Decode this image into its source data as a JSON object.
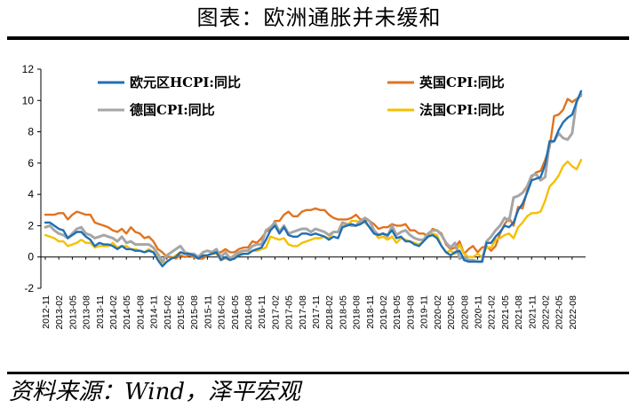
{
  "header": {
    "title": "图表：欧洲通胀并未缓和"
  },
  "footer": {
    "source": "资料来源：Wind，泽平宏观"
  },
  "chart_data": {
    "type": "line",
    "title": "",
    "xlabel": "",
    "ylabel": "",
    "ylim": [
      -2,
      12
    ],
    "yticks": [
      -2,
      0,
      2,
      4,
      6,
      8,
      10,
      12
    ],
    "grid": false,
    "legend_position": "top",
    "x": [
      "2012-11",
      "2012-12",
      "2013-01",
      "2013-02",
      "2013-03",
      "2013-04",
      "2013-05",
      "2013-06",
      "2013-07",
      "2013-08",
      "2013-09",
      "2013-10",
      "2013-11",
      "2013-12",
      "2014-01",
      "2014-02",
      "2014-03",
      "2014-04",
      "2014-05",
      "2014-06",
      "2014-07",
      "2014-08",
      "2014-09",
      "2014-10",
      "2014-11",
      "2014-12",
      "2015-01",
      "2015-02",
      "2015-03",
      "2015-04",
      "2015-05",
      "2015-06",
      "2015-07",
      "2015-08",
      "2015-09",
      "2015-10",
      "2015-11",
      "2015-12",
      "2016-01",
      "2016-02",
      "2016-03",
      "2016-04",
      "2016-05",
      "2016-06",
      "2016-07",
      "2016-08",
      "2016-09",
      "2016-10",
      "2016-11",
      "2016-12",
      "2017-01",
      "2017-02",
      "2017-03",
      "2017-04",
      "2017-05",
      "2017-06",
      "2017-07",
      "2017-08",
      "2017-09",
      "2017-10",
      "2017-11",
      "2017-12",
      "2018-01",
      "2018-02",
      "2018-03",
      "2018-04",
      "2018-05",
      "2018-06",
      "2018-07",
      "2018-08",
      "2018-09",
      "2018-10",
      "2018-11",
      "2018-12",
      "2019-01",
      "2019-02",
      "2019-03",
      "2019-04",
      "2019-05",
      "2019-06",
      "2019-07",
      "2019-08",
      "2019-09",
      "2019-10",
      "2019-11",
      "2019-12",
      "2020-01",
      "2020-02",
      "2020-03",
      "2020-04",
      "2020-05",
      "2020-06",
      "2020-07",
      "2020-08",
      "2020-09",
      "2020-10",
      "2020-11",
      "2020-12",
      "2021-01",
      "2021-02",
      "2021-03",
      "2021-04",
      "2021-05",
      "2021-06",
      "2021-07",
      "2021-08",
      "2021-09",
      "2021-10",
      "2021-11",
      "2021-12",
      "2022-01",
      "2022-02",
      "2022-03",
      "2022-04",
      "2022-05",
      "2022-06",
      "2022-07",
      "2022-08",
      "2022-09",
      "2022-10"
    ],
    "x_tick_labels": [
      "2012-11",
      "2013-02",
      "2013-05",
      "2013-08",
      "2013-11",
      "2014-02",
      "2014-05",
      "2014-08",
      "2014-11",
      "2015-02",
      "2015-05",
      "2015-08",
      "2015-11",
      "2016-02",
      "2016-05",
      "2016-08",
      "2016-11",
      "2017-02",
      "2017-05",
      "2017-08",
      "2017-11",
      "2018-02",
      "2018-05",
      "2018-08",
      "2018-11",
      "2019-02",
      "2019-05",
      "2019-08",
      "2019-11",
      "2020-02",
      "2020-05",
      "2020-08",
      "2020-11",
      "2021-02",
      "2021-05",
      "2021-08",
      "2021-11",
      "2022-02",
      "2022-05",
      "2022-08"
    ],
    "series": [
      {
        "name": "欧元区HCPI:同比",
        "color": "#1f6fb4",
        "width": 2.4,
        "values": [
          2.2,
          2.2,
          2.0,
          1.8,
          1.7,
          1.2,
          1.4,
          1.6,
          1.6,
          1.3,
          1.1,
          0.7,
          0.9,
          0.8,
          0.8,
          0.7,
          0.5,
          0.7,
          0.5,
          0.5,
          0.4,
          0.4,
          0.3,
          0.4,
          0.3,
          -0.2,
          -0.6,
          -0.3,
          -0.1,
          0.0,
          0.3,
          0.2,
          0.2,
          0.1,
          -0.1,
          0.1,
          0.1,
          0.2,
          0.3,
          -0.2,
          0.0,
          -0.2,
          -0.1,
          0.1,
          0.2,
          0.2,
          0.4,
          0.5,
          0.6,
          1.1,
          1.7,
          2.0,
          1.5,
          1.9,
          1.4,
          1.3,
          1.3,
          1.5,
          1.5,
          1.4,
          1.5,
          1.4,
          1.3,
          1.1,
          1.3,
          1.2,
          1.9,
          2.0,
          2.1,
          2.0,
          2.1,
          2.3,
          1.9,
          1.5,
          1.4,
          1.5,
          1.4,
          1.7,
          1.2,
          1.3,
          1.0,
          1.0,
          0.8,
          0.7,
          1.0,
          1.3,
          1.4,
          1.2,
          0.7,
          0.3,
          0.1,
          0.3,
          0.4,
          -0.2,
          -0.3,
          -0.3,
          -0.3,
          -0.3,
          0.9,
          0.9,
          1.3,
          1.6,
          2.0,
          1.9,
          2.2,
          3.0,
          3.4,
          4.1,
          4.9,
          5.0,
          5.1,
          5.9,
          7.4,
          7.4,
          8.1,
          8.6,
          8.9,
          9.1,
          9.9,
          10.6
        ]
      },
      {
        "name": "英国CPI:同比",
        "color": "#e0731f",
        "width": 2.4,
        "values": [
          2.7,
          2.7,
          2.7,
          2.8,
          2.8,
          2.4,
          2.7,
          2.9,
          2.8,
          2.7,
          2.7,
          2.2,
          2.1,
          2.0,
          1.9,
          1.7,
          1.6,
          1.8,
          1.5,
          1.9,
          1.6,
          1.5,
          1.2,
          1.3,
          1.0,
          0.5,
          0.3,
          0.0,
          0.0,
          -0.1,
          0.1,
          0.0,
          0.1,
          0.0,
          -0.1,
          -0.1,
          0.1,
          0.2,
          0.3,
          0.3,
          0.5,
          0.3,
          0.3,
          0.5,
          0.6,
          0.6,
          1.0,
          0.9,
          1.2,
          1.6,
          1.8,
          2.3,
          2.3,
          2.7,
          2.9,
          2.6,
          2.6,
          2.9,
          3.0,
          3.0,
          3.1,
          3.0,
          3.0,
          2.7,
          2.5,
          2.4,
          2.4,
          2.4,
          2.5,
          2.7,
          2.4,
          2.4,
          2.3,
          2.1,
          1.8,
          1.9,
          1.9,
          2.1,
          2.0,
          2.0,
          2.1,
          1.7,
          1.7,
          1.5,
          1.5,
          1.3,
          1.8,
          1.7,
          1.5,
          0.8,
          0.5,
          0.6,
          1.0,
          0.2,
          0.5,
          0.7,
          0.3,
          0.6,
          0.7,
          0.4,
          0.7,
          1.5,
          2.1,
          2.5,
          2.0,
          3.2,
          3.1,
          4.2,
          5.1,
          5.4,
          5.5,
          6.2,
          7.0,
          9.0,
          9.1,
          9.4,
          10.1,
          9.9,
          10.1,
          10.3
        ]
      },
      {
        "name": "德国CPI:同比",
        "color": "#a6a6a6",
        "width": 3.0,
        "values": [
          1.9,
          2.0,
          1.7,
          1.5,
          1.4,
          1.2,
          1.5,
          1.8,
          1.9,
          1.5,
          1.4,
          1.2,
          1.3,
          1.4,
          1.3,
          1.2,
          1.0,
          1.3,
          0.9,
          1.0,
          0.8,
          0.8,
          0.8,
          0.8,
          0.6,
          0.2,
          -0.3,
          0.1,
          0.3,
          0.5,
          0.7,
          0.3,
          0.2,
          0.2,
          0.0,
          0.3,
          0.4,
          0.3,
          0.5,
          0.0,
          0.3,
          -0.1,
          0.1,
          0.3,
          0.4,
          0.4,
          0.7,
          0.8,
          0.8,
          1.7,
          1.9,
          2.2,
          1.6,
          2.0,
          1.5,
          1.6,
          1.7,
          1.8,
          1.8,
          1.6,
          1.8,
          1.7,
          1.6,
          1.4,
          1.6,
          1.6,
          2.2,
          2.1,
          2.0,
          2.0,
          2.3,
          2.5,
          2.3,
          1.7,
          1.4,
          1.5,
          1.3,
          2.0,
          1.4,
          1.6,
          1.7,
          1.4,
          1.2,
          1.1,
          1.1,
          1.5,
          1.7,
          1.7,
          1.4,
          0.9,
          0.6,
          0.9,
          -0.1,
          0.0,
          -0.2,
          -0.2,
          -0.3,
          -0.3,
          1.0,
          1.3,
          1.7,
          2.0,
          2.5,
          2.3,
          3.8,
          3.9,
          4.1,
          4.5,
          5.2,
          5.3,
          4.9,
          5.1,
          7.3,
          7.4,
          7.9,
          7.6,
          7.5,
          7.9,
          10.0,
          10.4
        ]
      },
      {
        "name": "法国CPI:同比",
        "color": "#f5c000",
        "width": 2.4,
        "values": [
          1.4,
          1.3,
          1.2,
          1.0,
          1.0,
          0.7,
          0.8,
          0.9,
          1.1,
          0.9,
          0.9,
          0.6,
          0.7,
          0.7,
          0.7,
          0.9,
          0.6,
          0.7,
          0.7,
          0.5,
          0.5,
          0.4,
          0.3,
          0.5,
          0.3,
          0.1,
          -0.4,
          -0.3,
          -0.1,
          0.1,
          0.3,
          0.3,
          0.2,
          0.1,
          0.0,
          0.1,
          0.1,
          0.2,
          0.2,
          -0.2,
          -0.1,
          -0.2,
          0.0,
          0.2,
          0.2,
          0.2,
          0.4,
          0.4,
          0.5,
          0.6,
          1.3,
          1.2,
          1.1,
          1.2,
          0.8,
          0.7,
          0.7,
          0.9,
          1.0,
          1.1,
          1.2,
          1.2,
          1.3,
          1.2,
          1.6,
          1.6,
          2.0,
          2.0,
          2.3,
          2.3,
          2.2,
          2.2,
          1.9,
          1.6,
          1.2,
          1.3,
          1.1,
          1.3,
          0.9,
          1.2,
          1.1,
          1.0,
          0.9,
          0.8,
          1.0,
          1.5,
          1.5,
          1.4,
          0.7,
          0.3,
          0.4,
          0.2,
          0.8,
          0.2,
          0.0,
          0.0,
          0.2,
          0.0,
          0.6,
          0.6,
          1.1,
          1.2,
          1.4,
          1.5,
          1.2,
          1.9,
          2.2,
          2.6,
          2.8,
          2.8,
          2.9,
          3.6,
          4.5,
          4.8,
          5.2,
          5.8,
          6.1,
          5.8,
          5.6,
          6.2
        ]
      }
    ]
  }
}
